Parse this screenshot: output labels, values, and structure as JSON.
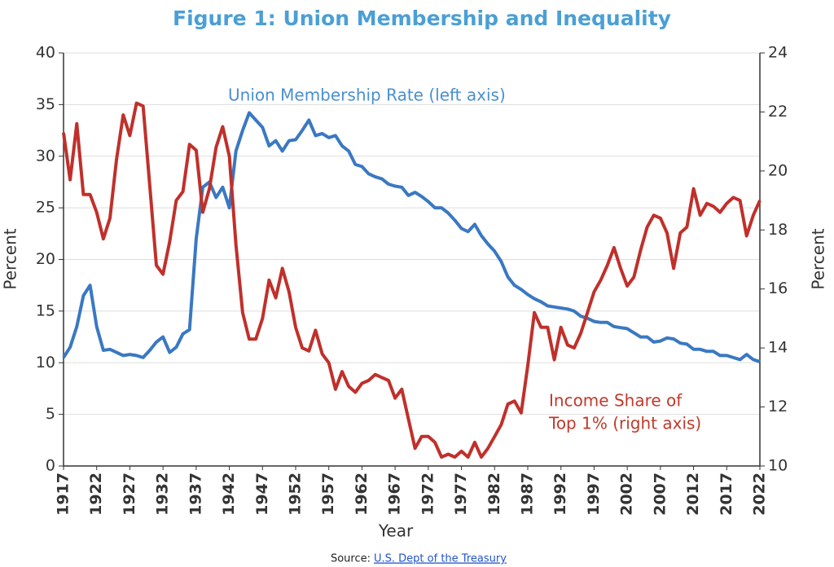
{
  "chart_data": {
    "type": "line",
    "title": "Figure 1: Union Membership and Inequality",
    "xlabel": "Year",
    "ylabel": "Percent",
    "y2label": "Percent",
    "source_label": "Source:",
    "source_link": "U.S. Dept of the Treasury",
    "annotations": [
      {
        "lines": [
          "Union Membership Rate (left axis)"
        ],
        "color": "#4a8fd0"
      },
      {
        "lines": [
          "Income Share of",
          "Top 1% (right axis)"
        ],
        "color": "#c0392b"
      }
    ],
    "xlim": [
      1917,
      2022
    ],
    "xticks": [
      1917,
      1922,
      1927,
      1932,
      1937,
      1942,
      1947,
      1952,
      1957,
      1962,
      1967,
      1972,
      1977,
      1982,
      1987,
      1992,
      1997,
      2002,
      2007,
      2012,
      2017,
      2022
    ],
    "ylim": [
      0,
      40
    ],
    "yticks": [
      0,
      5,
      10,
      15,
      20,
      25,
      30,
      35,
      40
    ],
    "y2lim": [
      10,
      24
    ],
    "y2ticks": [
      10,
      12,
      14,
      16,
      18,
      20,
      22,
      24
    ],
    "grid": true,
    "x": [
      1917,
      1918,
      1919,
      1920,
      1921,
      1922,
      1923,
      1924,
      1925,
      1926,
      1927,
      1928,
      1929,
      1930,
      1931,
      1932,
      1933,
      1934,
      1935,
      1936,
      1937,
      1938,
      1939,
      1940,
      1941,
      1942,
      1943,
      1944,
      1945,
      1946,
      1947,
      1948,
      1949,
      1950,
      1951,
      1952,
      1953,
      1954,
      1955,
      1956,
      1957,
      1958,
      1959,
      1960,
      1961,
      1962,
      1963,
      1964,
      1965,
      1966,
      1967,
      1968,
      1969,
      1970,
      1971,
      1972,
      1973,
      1974,
      1975,
      1976,
      1977,
      1978,
      1979,
      1980,
      1981,
      1982,
      1983,
      1984,
      1985,
      1986,
      1987,
      1988,
      1989,
      1990,
      1991,
      1992,
      1993,
      1994,
      1995,
      1996,
      1997,
      1998,
      1999,
      2000,
      2001,
      2002,
      2003,
      2004,
      2005,
      2006,
      2007,
      2008,
      2009,
      2010,
      2011,
      2012,
      2013,
      2014,
      2015,
      2016,
      2017,
      2018,
      2019,
      2020,
      2021,
      2022
    ],
    "series": [
      {
        "color": "#3a78c2",
        "values": [
          10.5,
          11.5,
          13.5,
          16.5,
          17.5,
          13.5,
          11.2,
          11.3,
          11.0,
          10.7,
          10.8,
          10.7,
          10.5,
          11.2,
          12.0,
          12.5,
          11.0,
          11.5,
          12.8,
          13.2,
          22.0,
          27.0,
          27.5,
          26.0,
          27.0,
          25.0,
          30.5,
          32.5,
          34.2,
          33.5,
          32.8,
          31.0,
          31.5,
          30.5,
          31.5,
          31.6,
          32.5,
          33.5,
          32.0,
          32.2,
          31.8,
          32.0,
          31.0,
          30.5,
          29.2,
          29.0,
          28.3,
          28.0,
          27.8,
          27.3,
          27.1,
          27.0,
          26.2,
          26.5,
          26.1,
          25.6,
          25.0,
          25.0,
          24.5,
          23.8,
          23.0,
          22.7,
          23.4,
          22.3,
          21.5,
          20.8,
          19.8,
          18.3,
          17.5,
          17.1,
          16.6,
          16.2,
          15.9,
          15.5,
          15.4,
          15.3,
          15.2,
          15.0,
          14.5,
          14.3,
          14.0,
          13.9,
          13.9,
          13.5,
          13.4,
          13.3,
          12.9,
          12.5,
          12.5,
          12.0,
          12.1,
          12.4,
          12.3,
          11.9,
          11.8,
          11.3,
          11.3,
          11.1,
          11.1,
          10.7,
          10.7,
          10.5,
          10.3,
          10.8,
          10.3,
          10.1
        ]
      },
      {
        "color": "#c0302b",
        "axis": "y2",
        "values": [
          21.3,
          19.7,
          21.6,
          19.2,
          19.2,
          18.6,
          17.7,
          18.4,
          20.4,
          21.9,
          21.2,
          22.3,
          22.2,
          19.5,
          16.8,
          16.5,
          17.6,
          19.0,
          19.3,
          20.9,
          20.7,
          18.6,
          19.4,
          20.8,
          21.5,
          20.5,
          17.5,
          15.2,
          14.3,
          14.3,
          15.0,
          16.3,
          15.7,
          16.7,
          15.9,
          14.7,
          14.0,
          13.9,
          14.6,
          13.8,
          13.5,
          12.6,
          13.2,
          12.7,
          12.5,
          12.8,
          12.9,
          13.1,
          13.0,
          12.9,
          12.3,
          12.6,
          11.6,
          10.6,
          11.0,
          11.0,
          10.8,
          10.3,
          10.4,
          10.3,
          10.5,
          10.3,
          10.8,
          10.3,
          10.6,
          11.0,
          11.4,
          12.1,
          12.2,
          11.8,
          13.4,
          15.2,
          14.7,
          14.7,
          13.6,
          14.7,
          14.1,
          14.0,
          14.5,
          15.2,
          15.9,
          16.3,
          16.8,
          17.4,
          16.7,
          16.1,
          16.4,
          17.3,
          18.1,
          18.5,
          18.4,
          17.9,
          16.7,
          17.9,
          18.1,
          19.4,
          18.5,
          18.9,
          18.8,
          18.6,
          18.9,
          19.1,
          19.0,
          17.8,
          18.5,
          19.0
        ]
      }
    ]
  }
}
